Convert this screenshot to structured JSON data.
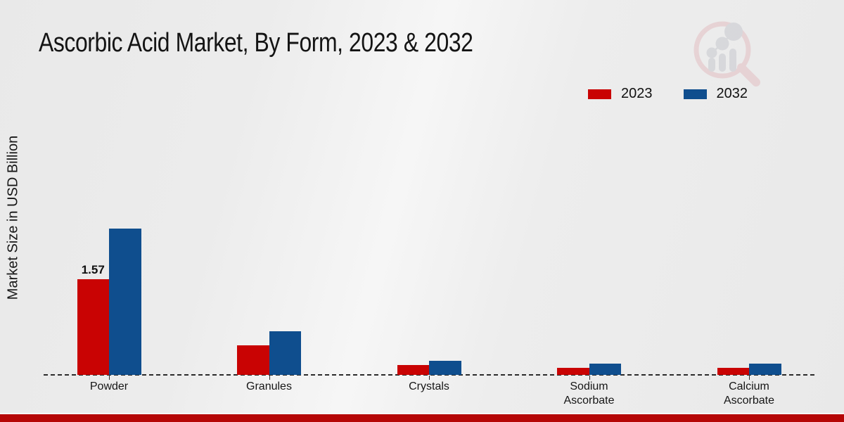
{
  "page": {
    "title": "Ascorbic Acid Market, By Form, 2023 & 2032"
  },
  "axis": {
    "ylabel": "Market Size in USD Billion"
  },
  "legend": {
    "items": [
      {
        "label": "2023",
        "color": "#c90303"
      },
      {
        "label": "2032",
        "color": "#0f4e8e"
      }
    ]
  },
  "chart_data": {
    "type": "bar",
    "title": "Ascorbic Acid Market, By Form, 2023 & 2032",
    "ylabel": "Market Size in USD Billion",
    "xlabel": "",
    "categories": [
      "Powder",
      "Granules",
      "Crystals",
      "Sodium Ascorbate",
      "Calcium Ascorbate"
    ],
    "series": [
      {
        "name": "2023",
        "color": "#c90303",
        "values": [
          1.57,
          0.48,
          0.16,
          0.12,
          0.11
        ]
      },
      {
        "name": "2032",
        "color": "#0f4e8e",
        "values": [
          2.4,
          0.72,
          0.23,
          0.18,
          0.18
        ]
      }
    ],
    "annotations": [
      {
        "series_index": 0,
        "category_index": 0,
        "text": "1.57"
      }
    ],
    "ylim": [
      0,
      2.6
    ],
    "grid": false,
    "legend_position": "top-right",
    "baseline_style": "dashed"
  },
  "colors": {
    "series_2023": "#c90303",
    "series_2032": "#0f4e8e",
    "footer_band": "#b50606",
    "background": "#ececec",
    "text": "#141414"
  },
  "watermark": {
    "name": "magnifier-bar-chart-logo",
    "ring_color": "#e3bfc3",
    "glyph_color": "#c7c8ce"
  }
}
